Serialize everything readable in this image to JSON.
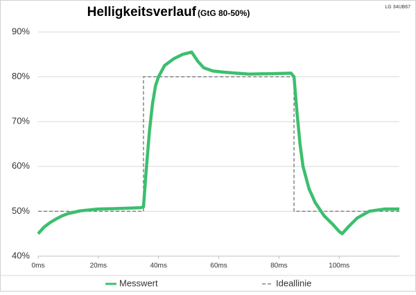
{
  "chart_data": {
    "type": "line",
    "title": "Helligkeitsverlauf",
    "title_note": "(GtG 80-50%)",
    "subtitle": "LG 34UB67",
    "xlim": [
      0,
      120
    ],
    "xticks": [
      {
        "value": 0,
        "label": "0ms"
      },
      {
        "value": 20,
        "label": "20ms"
      },
      {
        "value": 40,
        "label": "40ms"
      },
      {
        "value": 60,
        "label": "60ms"
      },
      {
        "value": 80,
        "label": "80ms"
      },
      {
        "value": 100,
        "label": "100ms"
      }
    ],
    "ylim": [
      40,
      90
    ],
    "yticks": [
      {
        "value": 40,
        "label": "40%"
      },
      {
        "value": 50,
        "label": "50%"
      },
      {
        "value": 60,
        "label": "60%"
      },
      {
        "value": 70,
        "label": "70%"
      },
      {
        "value": 80,
        "label": "80%"
      },
      {
        "value": 90,
        "label": "90%"
      }
    ],
    "grid": true,
    "legend": "bottom",
    "series": [
      {
        "name": "Messwert",
        "color": "#3cbf6e",
        "dash": false,
        "x": [
          0,
          2,
          4,
          6,
          8,
          10,
          14,
          20,
          26,
          34,
          35,
          36,
          37,
          38,
          39,
          40,
          42,
          45,
          48,
          51,
          53,
          55,
          58,
          62,
          70,
          78,
          84,
          85,
          86,
          87,
          88,
          90,
          92,
          95,
          98,
          100,
          101,
          103,
          106,
          110,
          115,
          120
        ],
        "values": [
          45,
          46.5,
          47.5,
          48.3,
          49,
          49.5,
          50.1,
          50.5,
          50.6,
          50.8,
          51,
          60,
          68,
          74,
          78,
          80,
          82.5,
          84,
          85,
          85.5,
          83.5,
          82,
          81.3,
          81,
          80.6,
          80.7,
          80.8,
          80,
          72,
          65,
          60,
          55,
          52,
          49,
          47,
          45.5,
          45,
          46.5,
          48.5,
          50,
          50.5,
          50.5
        ]
      },
      {
        "name": "Ideallinie",
        "color": "#707070",
        "dash": true,
        "x": [
          0,
          35,
          35,
          85,
          85,
          120
        ],
        "values": [
          50,
          50,
          80,
          80,
          50,
          50
        ]
      }
    ]
  }
}
